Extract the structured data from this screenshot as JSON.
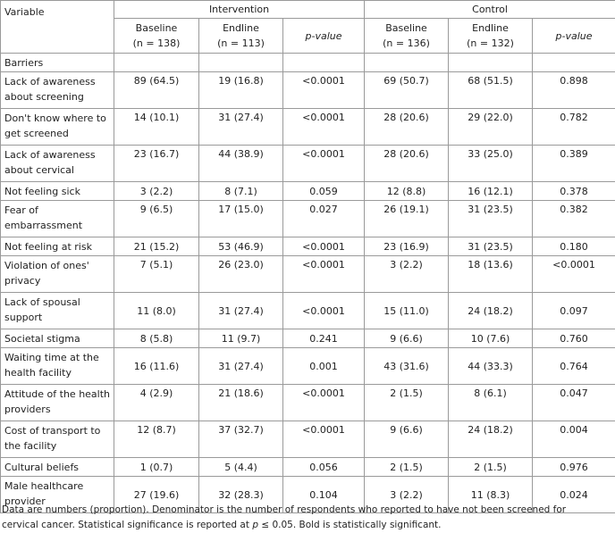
{
  "table": {
    "header": {
      "variable": "Variable",
      "intervention": "Intervention",
      "control": "Control",
      "columns": [
        {
          "label": "Baseline",
          "n": "(n = 138)"
        },
        {
          "label": "Endline",
          "n": "(n = 113)"
        },
        {
          "label": "p-value"
        },
        {
          "label": "Baseline",
          "n": "(n = 136)"
        },
        {
          "label": "Endline",
          "n": "(n = 132)"
        },
        {
          "label": "p-value"
        }
      ]
    },
    "section": "Barriers",
    "rows": [
      {
        "variable": [
          "Lack of awareness",
          "about screening"
        ],
        "values": [
          "89 (64.5)",
          "19 (16.8)",
          "<0.0001",
          "69 (50.7)",
          "68 (51.5)",
          "0.898"
        ]
      },
      {
        "variable": [
          "Don't know where to",
          "get screened"
        ],
        "values": [
          "14 (10.1)",
          "31 (27.4)",
          "<0.0001",
          "28 (20.6)",
          "29 (22.0)",
          "0.782"
        ]
      },
      {
        "variable": [
          "Lack of awareness",
          "about cervical"
        ],
        "values": [
          "23 (16.7)",
          "44 (38.9)",
          "<0.0001",
          "28 (20.6)",
          "33 (25.0)",
          "0.389"
        ]
      },
      {
        "variable": [
          "Not feeling sick"
        ],
        "values": [
          "3 (2.2)",
          "8 (7.1)",
          "0.059",
          "12 (8.8)",
          "16 (12.1)",
          "0.378"
        ]
      },
      {
        "variable": [
          "Fear of",
          "embarrassment"
        ],
        "values": [
          "9 (6.5)",
          "17 (15.0)",
          "0.027",
          "26 (19.1)",
          "31 (23.5)",
          "0.382"
        ]
      },
      {
        "variable": [
          "Not feeling at risk"
        ],
        "values": [
          "21 (15.2)",
          "53 (46.9)",
          "<0.0001",
          "23 (16.9)",
          "31 (23.5)",
          "0.180"
        ]
      },
      {
        "variable": [
          "Violation of ones'",
          "privacy"
        ],
        "values": [
          "7 (5.1)",
          "26 (23.0)",
          "<0.0001",
          "3 (2.2)",
          "18 (13.6)",
          "<0.0001"
        ]
      },
      {
        "variable": [
          "Lack of spousal",
          "support"
        ],
        "values": [
          "11 (8.0)",
          "31 (27.4)",
          "<0.0001",
          "15 (11.0)",
          "24 (18.2)",
          "0.097"
        ],
        "middle": true
      },
      {
        "variable": [
          "Societal stigma"
        ],
        "values": [
          "8 (5.8)",
          "11 (9.7)",
          "0.241",
          "9 (6.6)",
          "10 (7.6)",
          "0.760"
        ]
      },
      {
        "variable": [
          "Waiting time at the",
          "health facility"
        ],
        "values": [
          "16 (11.6)",
          "31 (27.4)",
          "0.001",
          "43 (31.6)",
          "44 (33.3)",
          "0.764"
        ],
        "middle": true
      },
      {
        "variable": [
          "Attitude of the health",
          "providers"
        ],
        "values": [
          "4 (2.9)",
          "21 (18.6)",
          "<0.0001",
          "2 (1.5)",
          "8 (6.1)",
          "0.047"
        ]
      },
      {
        "variable": [
          "Cost of transport to",
          "the facility"
        ],
        "values": [
          "12 (8.7)",
          "37 (32.7)",
          "<0.0001",
          "9 (6.6)",
          "24 (18.2)",
          "0.004"
        ]
      },
      {
        "variable": [
          "Cultural beliefs"
        ],
        "values": [
          "1 (0.7)",
          "5 (4.4)",
          "0.056",
          "2 (1.5)",
          "2 (1.5)",
          "0.976"
        ]
      },
      {
        "variable": [
          "Male healthcare",
          "provider"
        ],
        "values": [
          "27 (19.6)",
          "32 (28.3)",
          "0.104",
          "3 (2.2)",
          "11 (8.3)",
          "0.024"
        ],
        "middle": true
      }
    ]
  },
  "footnote": {
    "line1": "Data are numbers (proportion). Denominator is the number of respondents who reported to have not been screened for",
    "line2_pre": "cervical cancer. Statistical significance is reported at ",
    "line2_p": "p",
    "line2_post": " ≤ 0.05. Bold is statistically significant."
  }
}
